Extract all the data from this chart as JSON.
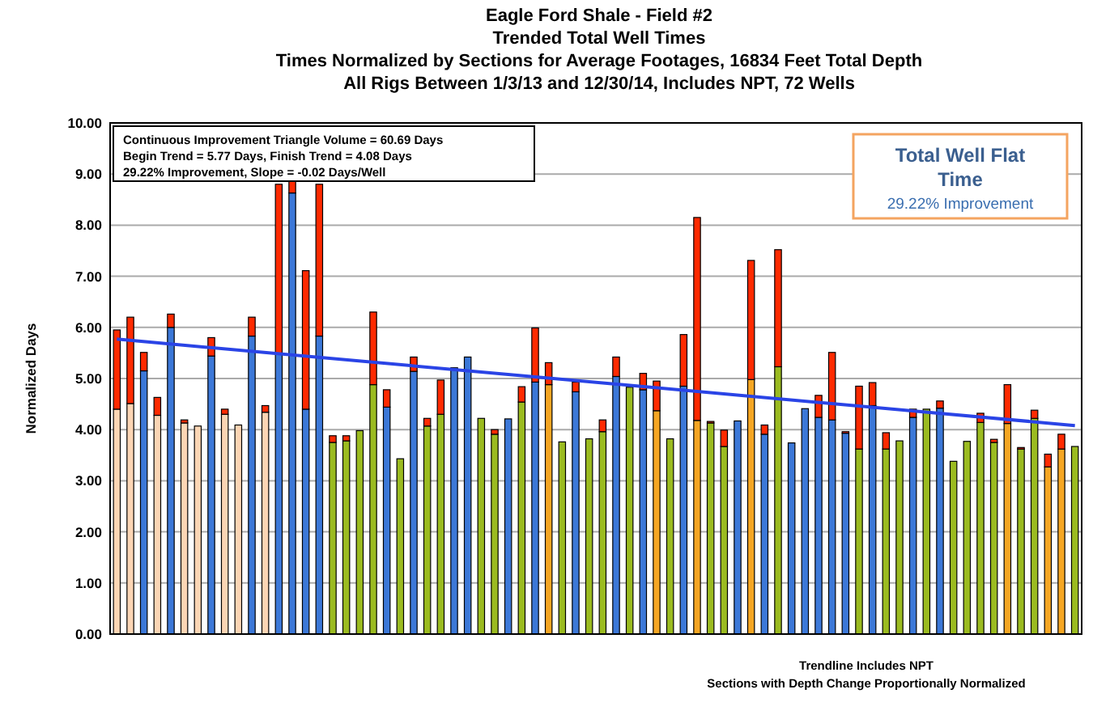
{
  "chart_data": {
    "type": "bar",
    "stacked": true,
    "title": "Eagle Ford Shale - Field #2",
    "subtitle": "Trended Total Well Times\nTimes Normalized by Sections for Average Footages, 16834 Feet Total Depth\nAll Rigs Between 1/3/13 and 12/30/14, Includes NPT, 72 Wells",
    "ylabel": "Normalized Days",
    "categories": [
      null,
      null,
      null,
      null,
      null,
      null,
      null,
      null,
      null,
      null,
      null,
      null,
      null,
      null,
      null,
      null,
      null,
      null,
      null,
      null,
      null,
      null,
      null,
      null,
      null,
      null,
      null,
      null,
      null,
      null,
      null,
      null,
      null,
      null,
      null,
      null,
      null,
      null,
      null,
      null,
      null,
      null,
      null,
      null,
      null,
      null,
      null,
      null,
      null,
      null,
      null,
      null,
      null,
      null,
      null,
      null,
      null,
      null,
      null,
      null,
      null,
      null,
      null,
      null,
      null,
      null,
      null,
      null,
      null,
      null,
      null,
      null
    ],
    "series": [
      {
        "values": [
          4.4,
          4.51,
          5.15,
          4.28,
          6.0,
          4.13,
          4.07,
          5.44,
          4.3,
          4.09,
          5.83,
          4.34,
          5.49,
          8.63,
          4.4,
          5.83,
          3.75,
          3.78,
          3.98,
          4.88,
          4.44,
          3.43,
          5.14,
          4.07,
          4.3,
          5.21,
          5.42,
          4.22,
          3.91,
          4.21,
          4.54,
          4.93,
          4.88,
          3.76,
          4.74,
          3.82,
          3.96,
          5.04,
          4.83,
          4.78,
          4.37,
          3.82,
          4.85,
          4.18,
          4.13,
          3.67,
          4.17,
          4.98,
          3.91,
          5.23,
          3.74,
          4.41,
          4.24,
          4.19,
          3.93,
          3.62,
          4.47,
          3.62,
          3.78,
          4.24,
          4.4,
          4.42,
          3.38,
          3.77,
          4.14,
          3.75,
          4.12,
          3.62,
          4.22,
          3.27,
          3.62,
          3.67
        ],
        "colors": [
          "#fcd5b4",
          "#fcd5b4",
          "#3c78d8",
          "#fcd5b4",
          "#3c78d8",
          "#fcd5b4",
          "#fcd5b4",
          "#3c78d8",
          "#fcd5b4",
          "#fcd5b4",
          "#3c78d8",
          "#fcd5b4",
          "#3c78d8",
          "#3c78d8",
          "#3c78d8",
          "#3c78d8",
          "#9bbb20",
          "#9bbb20",
          "#9bbb20",
          "#9bbb20",
          "#3c78d8",
          "#9bbb20",
          "#3c78d8",
          "#9bbb20",
          "#9bbb20",
          "#3c78d8",
          "#3c78d8",
          "#9bbb20",
          "#9bbb20",
          "#3c78d8",
          "#9bbb20",
          "#3c78d8",
          "#f5a623",
          "#9bbb20",
          "#3c78d8",
          "#9bbb20",
          "#9bbb20",
          "#3c78d8",
          "#9bbb20",
          "#3c78d8",
          "#f5a623",
          "#9bbb20",
          "#3c78d8",
          "#f5a623",
          "#9bbb20",
          "#9bbb20",
          "#3c78d8",
          "#f5a623",
          "#3c78d8",
          "#9bbb20",
          "#3c78d8",
          "#3c78d8",
          "#3c78d8",
          "#3c78d8",
          "#3c78d8",
          "#9bbb20",
          "#3c78d8",
          "#9bbb20",
          "#9bbb20",
          "#3c78d8",
          "#9bbb20",
          "#3c78d8",
          "#9bbb20",
          "#9bbb20",
          "#9bbb20",
          "#9bbb20",
          "#f5a623",
          "#9bbb20",
          "#9bbb20",
          "#f5a623",
          "#f5a623",
          "#9bbb20"
        ]
      },
      {
        "color": "#ff2a00",
        "values": [
          1.55,
          1.69,
          0.36,
          0.35,
          0.26,
          0.06,
          null,
          0.36,
          0.1,
          null,
          0.37,
          0.13,
          3.31,
          0.27,
          2.71,
          2.97,
          0.13,
          0.1,
          null,
          1.42,
          0.34,
          null,
          0.28,
          0.15,
          0.67,
          null,
          null,
          null,
          0.09,
          null,
          0.3,
          1.06,
          0.43,
          null,
          0.19,
          null,
          0.23,
          0.38,
          null,
          0.32,
          0.58,
          null,
          1.01,
          3.97,
          0.03,
          0.32,
          null,
          2.33,
          0.18,
          2.29,
          null,
          null,
          0.43,
          1.32,
          0.03,
          1.23,
          0.45,
          0.32,
          null,
          0.16,
          null,
          0.14,
          null,
          null,
          0.18,
          0.06,
          0.76,
          0.03,
          0.16,
          0.25,
          0.29,
          null
        ]
      },
      {
        "type": "line",
        "color": "#2a44e6",
        "values": [
          5.77,
          null,
          null,
          null,
          null,
          null,
          null,
          null,
          null,
          null,
          null,
          null,
          null,
          null,
          null,
          null,
          null,
          null,
          null,
          null,
          null,
          null,
          null,
          null,
          null,
          null,
          null,
          null,
          null,
          null,
          null,
          null,
          null,
          null,
          null,
          null,
          null,
          null,
          null,
          null,
          null,
          null,
          null,
          null,
          null,
          null,
          null,
          null,
          null,
          null,
          null,
          null,
          null,
          null,
          null,
          null,
          null,
          null,
          null,
          null,
          null,
          null,
          null,
          null,
          null,
          null,
          null,
          null,
          null,
          null,
          null,
          4.08
        ]
      }
    ],
    "ylim": [
      0,
      10
    ],
    "yticks": [
      {
        "value": 0,
        "label": "0.00"
      },
      {
        "value": 1,
        "label": "1.00"
      },
      {
        "value": 2,
        "label": "2.00"
      },
      {
        "value": 3,
        "label": "3.00"
      },
      {
        "value": 4,
        "label": "4.00"
      },
      {
        "value": 5,
        "label": "5.00"
      },
      {
        "value": 6,
        "label": "6.00"
      },
      {
        "value": 7,
        "label": "7.00"
      },
      {
        "value": 8,
        "label": "8.00"
      },
      {
        "value": 9,
        "label": "9.00"
      },
      {
        "value": 10,
        "label": "10.00"
      }
    ],
    "grid": "y",
    "annotations": [
      "Continuous Improvement Triangle Volume = 60.69 Days",
      "Begin Trend = 5.77 Days, Finish Trend = 4.08 Days",
      "29.22% Improvement, Slope = -0.02 Days/Well",
      "Total Well Flat Time",
      "29.22% Improvement",
      "Trendline Includes NPT",
      "Sections with Depth Change Proportionally Normalized"
    ]
  }
}
